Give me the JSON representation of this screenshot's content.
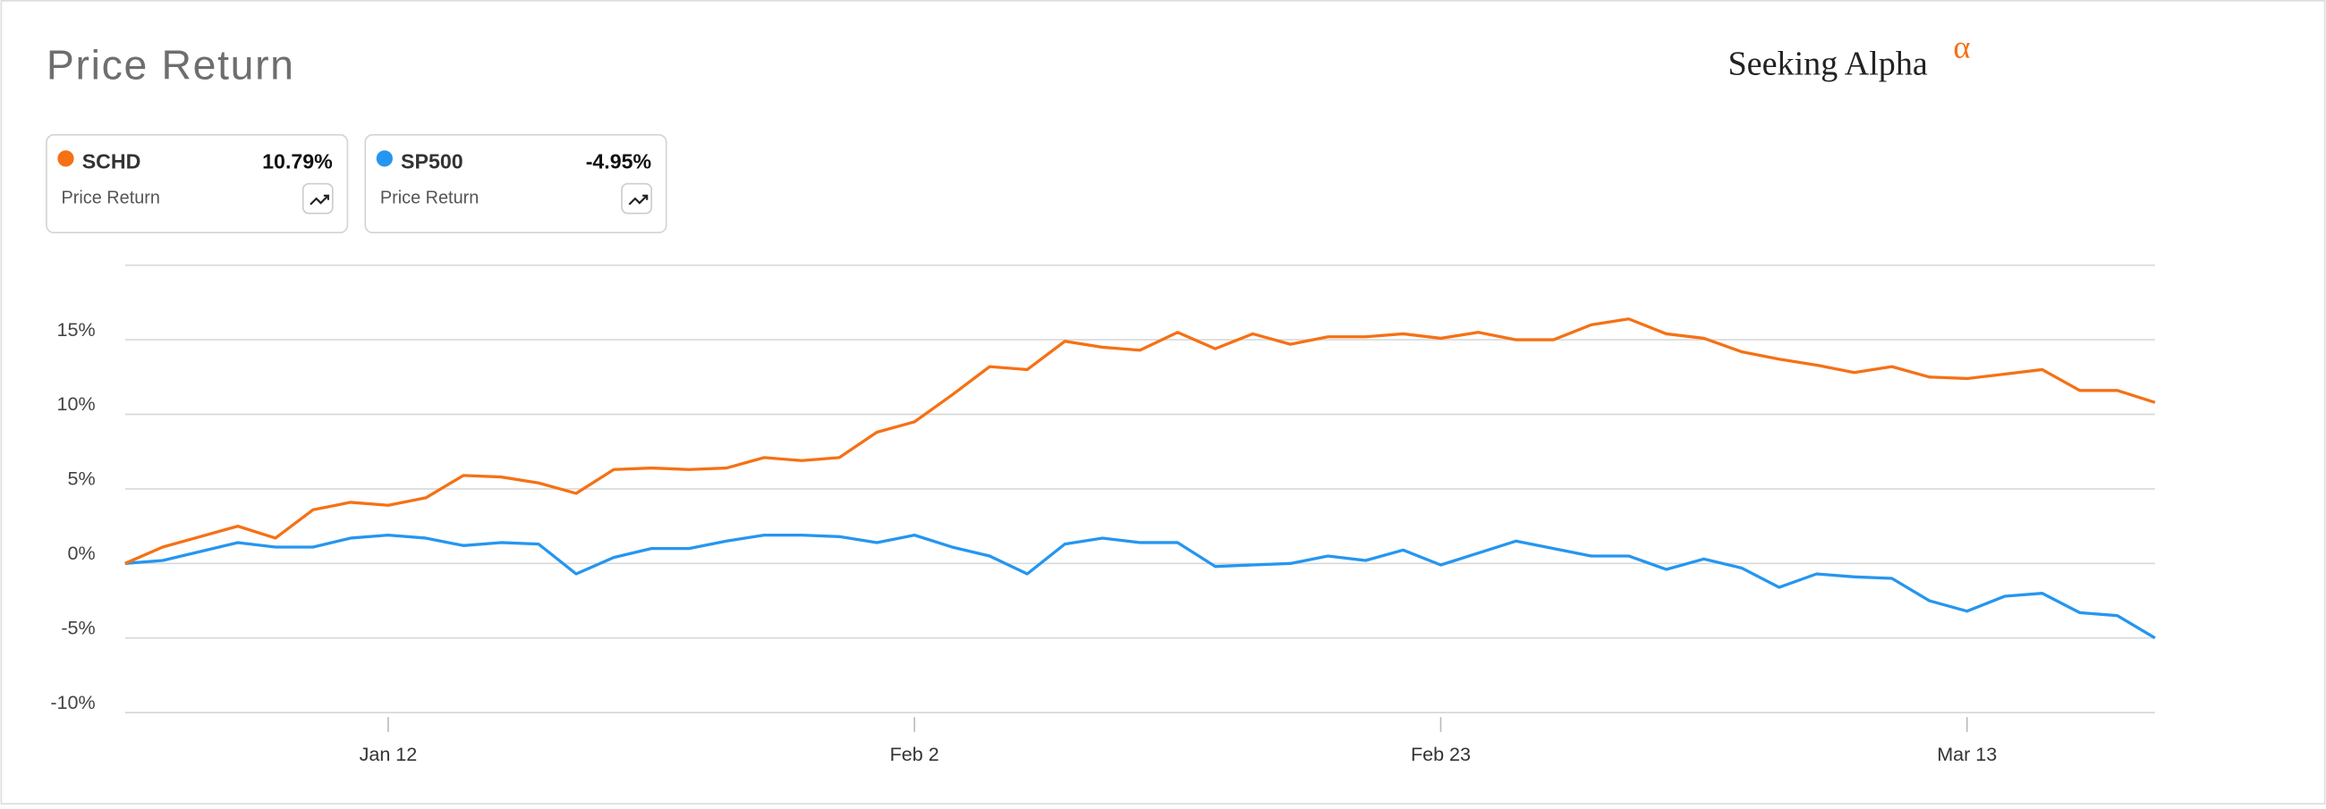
{
  "title": "Price Return",
  "brand": {
    "name": "Seeking Alpha",
    "mark": "α"
  },
  "chart_data": {
    "type": "line",
    "categories": [
      null,
      null,
      null,
      null,
      null,
      null,
      null,
      "Jan 12",
      null,
      null,
      null,
      null,
      null,
      null,
      null,
      null,
      null,
      null,
      null,
      null,
      null,
      "Feb 2",
      null,
      null,
      null,
      null,
      null,
      null,
      null,
      null,
      null,
      null,
      null,
      null,
      null,
      "Feb 23",
      null,
      null,
      null,
      null,
      null,
      null,
      null,
      null,
      null,
      null,
      null,
      null,
      null,
      "Mar 13",
      null,
      null,
      null,
      null,
      null
    ],
    "series": [
      {
        "name": "SCHD",
        "color": "#f57115",
        "summary": "10.79%",
        "metric": "Price Return",
        "values": [
          0,
          1.1,
          1.8,
          2.5,
          1.7,
          3.6,
          4.1,
          3.9,
          4.4,
          5.9,
          5.8,
          5.4,
          4.7,
          6.3,
          6.4,
          6.3,
          6.4,
          7.1,
          6.9,
          7.1,
          8.8,
          9.5,
          11.3,
          13.2,
          13.0,
          14.9,
          14.5,
          14.3,
          15.5,
          14.4,
          15.4,
          14.7,
          15.2,
          15.2,
          15.4,
          15.1,
          15.5,
          15.0,
          15.0,
          16.0,
          16.4,
          15.4,
          15.1,
          14.2,
          13.7,
          13.3,
          12.8,
          13.2,
          12.5,
          12.4,
          12.7,
          13.0,
          11.6,
          11.6,
          10.8
        ]
      },
      {
        "name": "SP500",
        "color": "#2596f0",
        "summary": "-4.95%",
        "metric": "Price Return",
        "values": [
          0,
          0.2,
          0.8,
          1.4,
          1.1,
          1.1,
          1.7,
          1.9,
          1.7,
          1.2,
          1.4,
          1.3,
          -0.7,
          0.4,
          1.0,
          1.0,
          1.5,
          1.9,
          1.9,
          1.8,
          1.4,
          1.9,
          1.1,
          0.5,
          -0.7,
          1.3,
          1.7,
          1.4,
          1.4,
          -0.2,
          -0.1,
          0,
          0.5,
          0.2,
          0.9,
          -0.1,
          0.7,
          1.5,
          1.0,
          0.5,
          0.5,
          -0.4,
          0.3,
          -0.3,
          -1.6,
          -0.7,
          -0.9,
          -1.0,
          -2.5,
          -3.2,
          -2.2,
          -2.0,
          -3.3,
          -3.5,
          -5.0
        ]
      }
    ],
    "ylim": [
      -10.9,
      20
    ],
    "yticks": [
      {
        "value": -10,
        "label": "-10%"
      },
      {
        "value": -5,
        "label": "-5%"
      },
      {
        "value": 0,
        "label": "0%"
      },
      {
        "value": 5,
        "label": "5%"
      },
      {
        "value": 10,
        "label": "10%"
      },
      {
        "value": 15,
        "label": "15%"
      }
    ],
    "grid": true
  }
}
